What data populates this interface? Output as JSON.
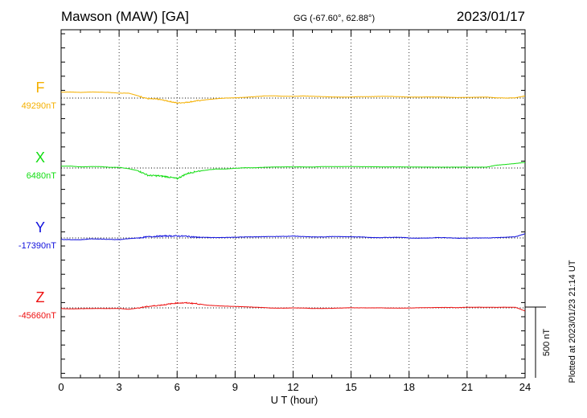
{
  "header": {
    "station": "Mawson (MAW)  [GA]",
    "coords": "GG (-67.60°,  62.88°)",
    "date": "2023/01/17"
  },
  "footer": {
    "plotted": "Plotted at 2023/01/23 21:14 UT"
  },
  "chart_data": {
    "type": "line",
    "xlabel": "U T (hour)",
    "xlim": [
      0,
      24
    ],
    "x_ticks": [
      "0",
      "3",
      "6",
      "9",
      "12",
      "15",
      "18",
      "21",
      "24"
    ],
    "scale_bar_label": "500 nT",
    "scale_bar_nT": 500,
    "grid": true,
    "colors": {
      "F": "#f5b000",
      "X": "#11dd11",
      "Y": "#1010dd",
      "Z": "#ee1111"
    },
    "x": [
      0,
      0.5,
      1,
      1.5,
      2,
      2.5,
      3,
      3.5,
      4,
      4.5,
      5,
      5.5,
      6,
      6.5,
      7,
      7.5,
      8,
      8.5,
      9,
      9.5,
      10,
      10.5,
      11,
      11.5,
      12,
      12.5,
      13,
      13.5,
      14,
      14.5,
      15,
      15.5,
      16,
      16.5,
      17,
      17.5,
      18,
      18.5,
      19,
      19.5,
      20,
      20.5,
      21,
      21.5,
      22,
      22.5,
      23,
      23.5,
      24
    ],
    "series": [
      {
        "name": "F",
        "baseline_label": "49290nT",
        "baseline": 49290,
        "values": [
          49332,
          49333,
          49330,
          49333,
          49332,
          49330,
          49325,
          49325,
          49305,
          49285,
          49282,
          49270,
          49255,
          49260,
          49270,
          49278,
          49285,
          49290,
          49292,
          49295,
          49300,
          49305,
          49306,
          49303,
          49302,
          49305,
          49303,
          49300,
          49298,
          49297,
          49298,
          49300,
          49300,
          49302,
          49302,
          49300,
          49297,
          49297,
          49298,
          49298,
          49296,
          49294,
          49295,
          49296,
          49297,
          49292,
          49290,
          49292,
          49305
        ]
      },
      {
        "name": "X",
        "baseline_label": "6480nT",
        "baseline": 6480,
        "values": [
          6493,
          6493,
          6488,
          6490,
          6490,
          6485,
          6485,
          6475,
          6460,
          6428,
          6425,
          6418,
          6405,
          6440,
          6456,
          6465,
          6473,
          6473,
          6478,
          6482,
          6482,
          6485,
          6487,
          6488,
          6488,
          6488,
          6487,
          6490,
          6490,
          6490,
          6490,
          6489,
          6489,
          6488,
          6488,
          6488,
          6487,
          6487,
          6486,
          6486,
          6486,
          6486,
          6486,
          6486,
          6486,
          6500,
          6505,
          6512,
          6520
        ]
      },
      {
        "name": "Y",
        "baseline_label": "-17390nT",
        "baseline": -17390,
        "values": [
          -17400,
          -17402,
          -17403,
          -17396,
          -17398,
          -17400,
          -17402,
          -17395,
          -17390,
          -17382,
          -17378,
          -17376,
          -17376,
          -17378,
          -17385,
          -17386,
          -17388,
          -17387,
          -17385,
          -17383,
          -17382,
          -17381,
          -17380,
          -17379,
          -17377,
          -17380,
          -17383,
          -17383,
          -17380,
          -17381,
          -17382,
          -17383,
          -17387,
          -17388,
          -17386,
          -17385,
          -17390,
          -17392,
          -17390,
          -17387,
          -17389,
          -17392,
          -17391,
          -17390,
          -17390,
          -17388,
          -17385,
          -17382,
          -17360
        ]
      },
      {
        "name": "Z",
        "baseline_label": "-45660nT",
        "baseline": -45660,
        "values": [
          -45665,
          -45667,
          -45666,
          -45665,
          -45664,
          -45665,
          -45664,
          -45670,
          -45660,
          -45650,
          -45643,
          -45635,
          -45625,
          -45625,
          -45630,
          -45640,
          -45645,
          -45648,
          -45650,
          -45652,
          -45655,
          -45658,
          -45662,
          -45662,
          -45660,
          -45661,
          -45664,
          -45664,
          -45663,
          -45661,
          -45659,
          -45660,
          -45660,
          -45660,
          -45661,
          -45662,
          -45661,
          -45659,
          -45658,
          -45657,
          -45657,
          -45658,
          -45656,
          -45655,
          -45656,
          -45656,
          -45655,
          -45656,
          -45682
        ]
      }
    ]
  }
}
